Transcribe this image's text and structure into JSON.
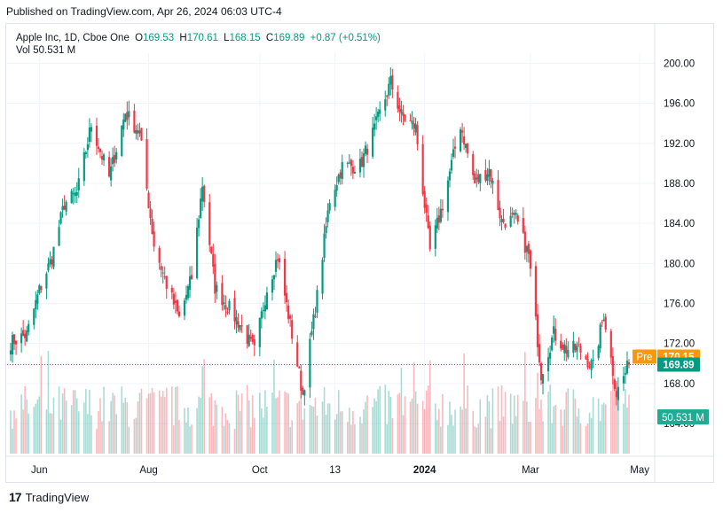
{
  "header": {
    "published": "Published on TradingView.com, Apr 26, 2024 06:03 UTC-4"
  },
  "legend": {
    "title": "Apple Inc, 1D, Cboe One",
    "o_label": "O",
    "o_value": "169.53",
    "h_label": "H",
    "h_value": "170.61",
    "l_label": "L",
    "l_value": "168.15",
    "c_label": "C",
    "c_value": "169.89",
    "change": "+0.87 (+0.51%)",
    "vol_label": "Vol",
    "vol_value": "50.531 M"
  },
  "price_badges": {
    "pre_label": "Pre",
    "pre_value": "170.15",
    "last_value": "169.89",
    "volume_value": "50.531 M"
  },
  "footer": {
    "brand": "TradingView"
  },
  "colors": {
    "up": "#089981",
    "down": "#f23645",
    "pre": "#ff9800",
    "grid": "#f0f3fa"
  },
  "chart_data": {
    "type": "candlestick",
    "title": "Apple Inc, 1D, Cboe One",
    "y_ticks": [
      "200.00",
      "196.00",
      "192.00",
      "188.00",
      "184.00",
      "180.00",
      "176.00",
      "172.00",
      "168.00",
      "164.00"
    ],
    "x_ticks": [
      "Jun",
      "Aug",
      "Oct",
      "13",
      "2024",
      "Mar",
      "May"
    ],
    "ylim": [
      164,
      200
    ],
    "grid": true,
    "close_path": [
      [
        "2023-05-16",
        172.1
      ],
      [
        "2023-05-25",
        172.9
      ],
      [
        "2023-06-01",
        177.3
      ],
      [
        "2023-06-08",
        180.6
      ],
      [
        "2023-06-15",
        186.0
      ],
      [
        "2023-06-22",
        187.0
      ],
      [
        "2023-06-30",
        193.9
      ],
      [
        "2023-07-10",
        188.6
      ],
      [
        "2023-07-19",
        195.1
      ],
      [
        "2023-07-27",
        193.0
      ],
      [
        "2023-08-04",
        181.9
      ],
      [
        "2023-08-11",
        177.9
      ],
      [
        "2023-08-18",
        174.5
      ],
      [
        "2023-08-25",
        178.6
      ],
      [
        "2023-08-31",
        187.9
      ],
      [
        "2023-09-07",
        177.6
      ],
      [
        "2023-09-14",
        175.7
      ],
      [
        "2023-09-21",
        173.9
      ],
      [
        "2023-09-29",
        171.2
      ],
      [
        "2023-10-06",
        177.5
      ],
      [
        "2023-10-12",
        180.7
      ],
      [
        "2023-10-20",
        172.9
      ],
      [
        "2023-10-26",
        166.9
      ],
      [
        "2023-11-03",
        176.7
      ],
      [
        "2023-11-10",
        186.4
      ],
      [
        "2023-11-17",
        189.7
      ],
      [
        "2023-11-27",
        189.8
      ],
      [
        "2023-12-05",
        193.4
      ],
      [
        "2023-12-14",
        198.1
      ],
      [
        "2023-12-20",
        194.8
      ],
      [
        "2023-12-28",
        193.6
      ],
      [
        "2024-01-05",
        181.2
      ],
      [
        "2024-01-12",
        185.9
      ],
      [
        "2024-01-22",
        193.9
      ],
      [
        "2024-01-30",
        188.0
      ],
      [
        "2024-02-07",
        189.4
      ],
      [
        "2024-02-14",
        184.2
      ],
      [
        "2024-02-22",
        184.4
      ],
      [
        "2024-02-29",
        180.8
      ],
      [
        "2024-03-07",
        169.0
      ],
      [
        "2024-03-14",
        173.0
      ],
      [
        "2024-03-21",
        171.4
      ],
      [
        "2024-03-28",
        171.5
      ],
      [
        "2024-04-05",
        169.6
      ],
      [
        "2024-04-11",
        175.0
      ],
      [
        "2024-04-18",
        167.0
      ],
      [
        "2024-04-25",
        169.9
      ]
    ],
    "last_bar": {
      "date": "2024-04-25",
      "open": 169.53,
      "high": 170.61,
      "low": 168.15,
      "close": 169.89,
      "volume": "50.531 M"
    },
    "premarket": 170.15
  }
}
